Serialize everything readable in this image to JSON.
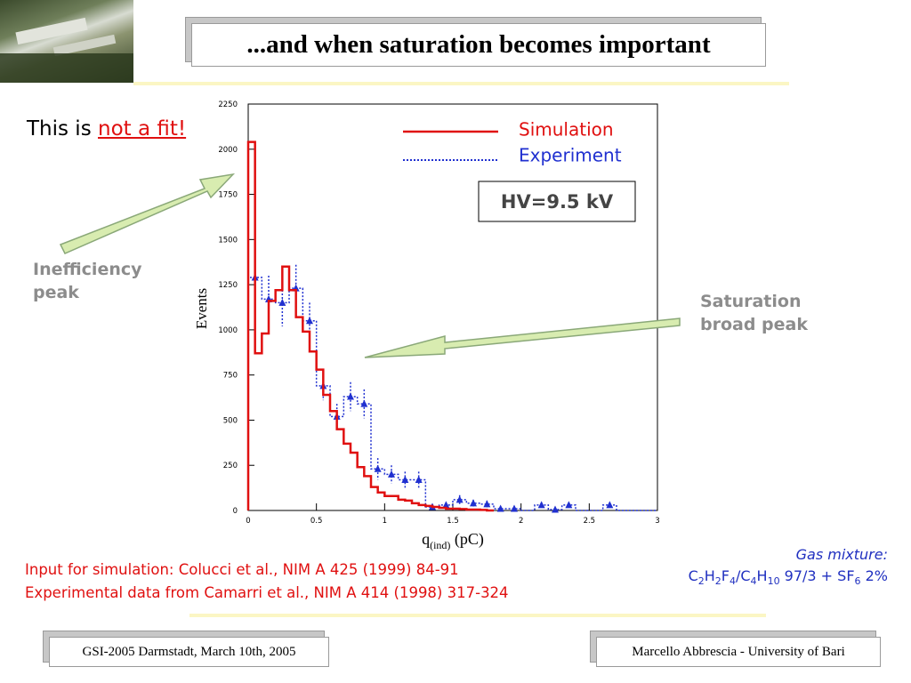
{
  "slide": {
    "title": "...and when saturation becomes important",
    "note_prefix": "This is",
    "note_emphasis": "not a fit!",
    "inefficiency_label_line1": "Inefficiency",
    "inefficiency_label_line2": "peak",
    "saturation_label_line1": "Saturation",
    "saturation_label_line2": "broad peak",
    "ref_simulation": "Input for simulation: Colucci et al., NIM A 425 (1999) 84-91",
    "ref_experiment": "Experimental data from Camarri et al., NIM A 414 (1998) 317-324",
    "gas_title": "Gas mixture:",
    "gas_parts": [
      "C",
      "2",
      "H",
      "2",
      "F",
      "4",
      "/C",
      "4",
      "H",
      "10",
      " 97/3 + SF",
      "6",
      " 2%"
    ],
    "footer_left": "GSI-2005 Darmstadt, March 10th, 2005",
    "footer_right": "Marcello Abbrescia - University of Bari",
    "colors": {
      "simulation": "#e01010",
      "experiment": "#2030d0",
      "arrow_fill": "#d8ecb0",
      "arrow_edge": "#8aa878",
      "rule": "#fbf6c4"
    }
  },
  "chart_data": {
    "type": "line",
    "title": "",
    "xlabel": "q",
    "xlabel_sub": "(ind)",
    "xlabel_unit": " (pC)",
    "ylabel": "Events",
    "xlim": [
      0,
      3
    ],
    "ylim": [
      0,
      2250
    ],
    "xticks": [
      0,
      0.5,
      1,
      1.5,
      2,
      2.5,
      3
    ],
    "xtick_labels": [
      "0",
      "0.5",
      "1",
      "1.5",
      "2",
      "2.5",
      "3"
    ],
    "yticks": [
      0,
      250,
      500,
      750,
      1000,
      1250,
      1500,
      1750,
      2000,
      2250
    ],
    "ytick_labels": [
      "0",
      "250",
      "500",
      "750",
      "1000",
      "1250",
      "1500",
      "1750",
      "2000",
      "2250"
    ],
    "annotation": "HV=9.5 kV",
    "legend_position": "top-right",
    "grid": false,
    "series": [
      {
        "name": "Simulation",
        "style": "step-solid",
        "bin_width": 0.05,
        "x": [
          0.0,
          0.05,
          0.1,
          0.15,
          0.2,
          0.25,
          0.3,
          0.35,
          0.4,
          0.45,
          0.5,
          0.55,
          0.6,
          0.65,
          0.7,
          0.75,
          0.8,
          0.85,
          0.9,
          0.95,
          1.0,
          1.05,
          1.1,
          1.15,
          1.2,
          1.25,
          1.3,
          1.35,
          1.4,
          1.45,
          1.5,
          1.55,
          1.6,
          1.65,
          1.7,
          1.75
        ],
        "values": [
          2040,
          870,
          980,
          1160,
          1220,
          1350,
          1220,
          1070,
          990,
          880,
          780,
          640,
          550,
          450,
          370,
          320,
          240,
          190,
          130,
          100,
          80,
          80,
          60,
          55,
          40,
          30,
          25,
          20,
          15,
          10,
          10,
          8,
          5,
          5,
          3,
          0
        ]
      },
      {
        "name": "Experiment",
        "style": "step-dotted-markers",
        "bin_width": 0.1,
        "x": [
          0.0,
          0.1,
          0.2,
          0.3,
          0.4,
          0.5,
          0.6,
          0.7,
          0.8,
          0.9,
          1.0,
          1.1,
          1.2,
          1.3,
          1.4,
          1.5,
          1.6,
          1.7,
          1.8,
          1.9,
          2.0,
          2.1,
          2.2,
          2.3,
          2.4,
          2.5,
          2.6,
          2.7,
          2.8,
          2.9
        ],
        "values": [
          1290,
          1170,
          1150,
          1230,
          1050,
          690,
          520,
          630,
          590,
          230,
          200,
          170,
          170,
          20,
          30,
          60,
          40,
          35,
          10,
          10,
          0,
          30,
          5,
          30,
          0,
          0,
          30,
          0,
          0,
          0
        ],
        "errors": [
          130,
          130,
          130,
          130,
          100,
          80,
          70,
          80,
          80,
          60,
          50,
          45,
          45,
          15,
          15,
          25,
          20,
          20,
          10,
          10,
          0,
          15,
          5,
          15,
          0,
          0,
          15,
          0,
          0,
          0
        ]
      }
    ]
  }
}
